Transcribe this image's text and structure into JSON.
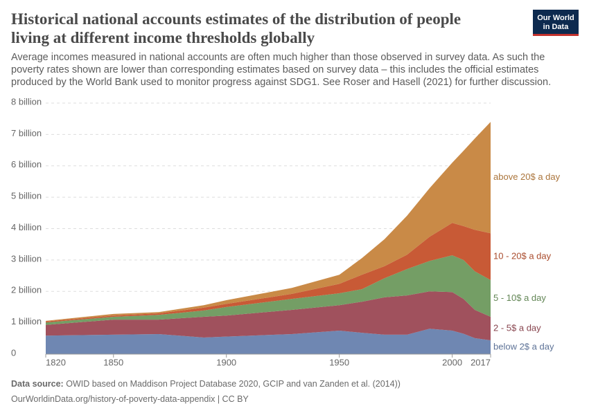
{
  "chart_data": {
    "type": "stacked_area",
    "title": "Historical national accounts estimates of the distribution of people living at different income thresholds globally",
    "subtitle": "Average incomes measured in national accounts are often much higher than those observed in survey data. As such the poverty rates shown are lower than corresponding estimates based on survey data – this includes the official estimates produced by the World Bank used to monitor progress against SDG1. See Roser and Hasell (2021) for further discussion.",
    "logo": [
      "Our World",
      "in Data"
    ],
    "source_label": "Data source:",
    "source_text": "OWID based on Maddison Project Database 2020, GCIP and van Zanden et al. (2014))",
    "url": "OurWorldinData.org/history-of-poverty-data-appendix | CC BY",
    "x": [
      1820,
      1850,
      1870,
      1890,
      1900,
      1929,
      1950,
      1960,
      1970,
      1980,
      1990,
      2000,
      2005,
      2010,
      2017
    ],
    "xlim": [
      1820,
      2017
    ],
    "xticks": [
      1820,
      1850,
      1900,
      1950,
      2000,
      2017
    ],
    "ylim": [
      0,
      8
    ],
    "yticks": [
      0,
      {
        "value": 1,
        "label": "1 billion"
      },
      {
        "value": 2,
        "label": "2 billion"
      },
      {
        "value": 3,
        "label": "3 billion"
      },
      {
        "value": 4,
        "label": "4 billion"
      },
      {
        "value": 5,
        "label": "5 billion"
      },
      {
        "value": 6,
        "label": "6 billion"
      },
      {
        "value": 7,
        "label": "7 billion"
      },
      {
        "value": 8,
        "label": "8 billion"
      }
    ],
    "grid": true,
    "series": [
      {
        "name": "below 2$ a day",
        "color": "#6f87b2",
        "values": [
          0.59,
          0.62,
          0.64,
          0.53,
          0.56,
          0.64,
          0.75,
          0.68,
          0.62,
          0.62,
          0.81,
          0.75,
          0.65,
          0.51,
          0.44
        ]
      },
      {
        "name": "2 - 5$ a day",
        "color": "#a0515d",
        "values": [
          0.34,
          0.48,
          0.46,
          0.66,
          0.67,
          0.77,
          0.81,
          0.99,
          1.19,
          1.25,
          1.19,
          1.23,
          1.11,
          0.9,
          0.75
        ]
      },
      {
        "name": "5 - 10$ a day",
        "color": "#749e65",
        "values": [
          0.08,
          0.09,
          0.15,
          0.2,
          0.27,
          0.35,
          0.38,
          0.4,
          0.61,
          0.84,
          0.97,
          1.17,
          1.24,
          1.23,
          1.17
        ]
      },
      {
        "name": "10 - 20$ a day",
        "color": "#c85a36",
        "values": [
          0.03,
          0.04,
          0.05,
          0.09,
          0.1,
          0.16,
          0.3,
          0.46,
          0.38,
          0.46,
          0.77,
          1.03,
          1.08,
          1.32,
          1.49
        ]
      },
      {
        "name": "above 20$ a day",
        "color": "#c98a47",
        "values": [
          0.02,
          0.05,
          0.04,
          0.08,
          0.12,
          0.19,
          0.29,
          0.53,
          0.86,
          1.24,
          1.55,
          1.92,
          2.4,
          2.91,
          3.55
        ]
      }
    ]
  }
}
